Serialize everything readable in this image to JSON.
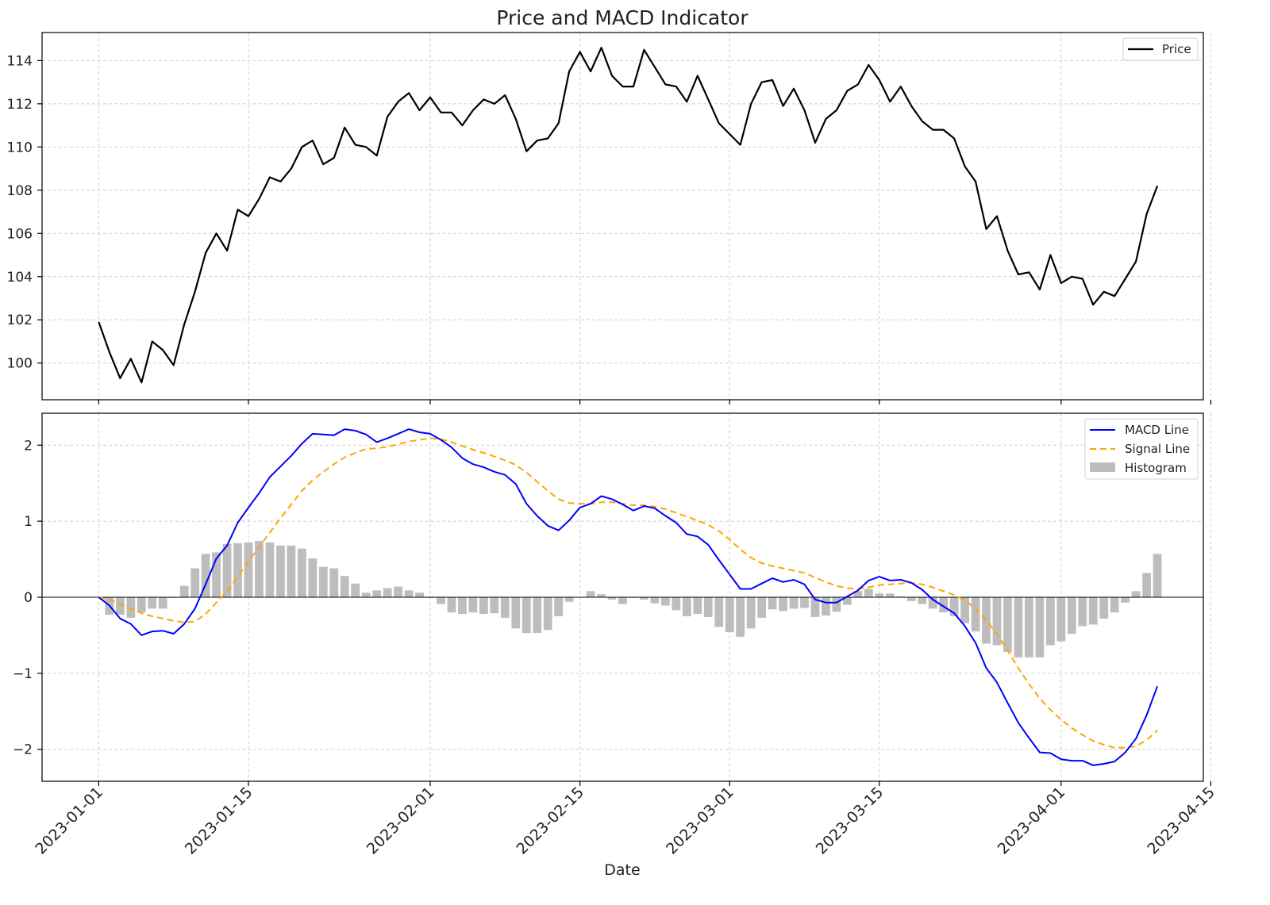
{
  "chart_data": {
    "title": "Price and MACD Indicator",
    "xlabel": "Date",
    "x_ticks": [
      "2023-01-01",
      "2023-01-15",
      "2023-02-01",
      "2023-02-15",
      "2023-03-01",
      "2023-03-15",
      "2023-04-01",
      "2023-04-15"
    ],
    "x_start_date": "2023-01-01",
    "x_range_days": [
      -5.3,
      103.3
    ],
    "price_panel": {
      "type": "line",
      "ylim": [
        98.3,
        115.3
      ],
      "y_ticks": [
        100,
        102,
        104,
        106,
        108,
        110,
        112,
        114
      ],
      "legend": [
        "Price"
      ],
      "series": [
        {
          "name": "Price",
          "color": "#000000",
          "values": [
            101.9,
            100.5,
            99.3,
            100.2,
            99.1,
            101.0,
            100.6,
            99.9,
            101.8,
            103.3,
            105.1,
            106.0,
            105.2,
            107.1,
            106.8,
            107.6,
            108.6,
            108.4,
            109.0,
            110.0,
            110.3,
            109.2,
            109.5,
            110.9,
            110.1,
            110.0,
            109.6,
            111.4,
            112.1,
            112.5,
            111.7,
            112.3,
            111.6,
            111.6,
            111.0,
            111.7,
            112.2,
            112.0,
            112.4,
            111.3,
            109.8,
            110.3,
            110.4,
            111.1,
            113.5,
            114.4,
            113.5,
            114.6,
            113.3,
            112.8,
            112.8,
            114.5,
            113.7,
            112.9,
            112.8,
            112.1,
            113.3,
            112.2,
            111.1,
            110.6,
            110.1,
            112.0,
            113.0,
            113.1,
            111.9,
            112.7,
            111.7,
            110.2,
            111.3,
            111.7,
            112.6,
            112.9,
            113.8,
            113.1,
            112.1,
            112.8,
            111.9,
            111.2,
            110.8,
            110.8,
            110.4,
            109.1,
            108.4,
            106.2,
            106.8,
            105.2,
            104.1,
            104.2,
            103.4,
            105.0,
            103.7,
            104.0,
            103.9,
            102.7,
            103.3,
            103.1,
            103.9,
            104.7,
            106.9,
            108.2
          ]
        }
      ]
    },
    "macd_panel": {
      "type": "line+bar",
      "ylim": [
        -2.42,
        2.42
      ],
      "y_ticks": [
        -2,
        -1,
        0,
        1,
        2
      ],
      "y_tick_labels": [
        "−2",
        "−1",
        "0",
        "1",
        "2"
      ],
      "legend": [
        "MACD Line",
        "Signal Line",
        "Histogram"
      ],
      "series": [
        {
          "name": "MACD Line",
          "color": "#0000ff",
          "style": "solid",
          "values": [
            0.0,
            -0.11,
            -0.28,
            -0.35,
            -0.5,
            -0.45,
            -0.44,
            -0.48,
            -0.35,
            -0.15,
            0.17,
            0.51,
            0.68,
            0.98,
            1.18,
            1.37,
            1.58,
            1.72,
            1.86,
            2.02,
            2.15,
            2.14,
            2.13,
            2.21,
            2.19,
            2.14,
            2.04,
            2.09,
            2.15,
            2.21,
            2.17,
            2.15,
            2.07,
            1.97,
            1.83,
            1.75,
            1.71,
            1.65,
            1.61,
            1.49,
            1.23,
            1.07,
            0.94,
            0.88,
            1.01,
            1.18,
            1.23,
            1.33,
            1.29,
            1.22,
            1.14,
            1.2,
            1.17,
            1.07,
            0.98,
            0.83,
            0.8,
            0.69,
            0.49,
            0.3,
            0.11,
            0.11,
            0.18,
            0.25,
            0.2,
            0.23,
            0.17,
            -0.03,
            -0.07,
            -0.07,
            0.01,
            0.09,
            0.22,
            0.27,
            0.22,
            0.23,
            0.19,
            0.1,
            -0.03,
            -0.12,
            -0.21,
            -0.38,
            -0.6,
            -0.93,
            -1.12,
            -1.39,
            -1.65,
            -1.85,
            -2.04,
            -2.05,
            -2.13,
            -2.15,
            -2.15,
            -2.21,
            -2.19,
            -2.16,
            -2.04,
            -1.86,
            -1.55,
            -1.17
          ]
        },
        {
          "name": "Signal Line",
          "color": "#ffa500",
          "style": "dashed",
          "values": [
            0.0,
            -0.03,
            -0.09,
            -0.15,
            -0.21,
            -0.25,
            -0.28,
            -0.31,
            -0.33,
            -0.32,
            -0.22,
            -0.07,
            0.08,
            0.27,
            0.47,
            0.66,
            0.85,
            1.04,
            1.22,
            1.4,
            1.54,
            1.65,
            1.75,
            1.84,
            1.9,
            1.95,
            1.96,
            1.98,
            2.01,
            2.05,
            2.07,
            2.09,
            2.08,
            2.04,
            1.99,
            1.94,
            1.9,
            1.85,
            1.8,
            1.74,
            1.64,
            1.52,
            1.4,
            1.29,
            1.24,
            1.23,
            1.23,
            1.25,
            1.25,
            1.23,
            1.21,
            1.21,
            1.19,
            1.16,
            1.11,
            1.06,
            1.01,
            0.95,
            0.87,
            0.76,
            0.63,
            0.52,
            0.45,
            0.41,
            0.38,
            0.35,
            0.32,
            0.26,
            0.2,
            0.15,
            0.12,
            0.11,
            0.13,
            0.16,
            0.17,
            0.18,
            0.19,
            0.17,
            0.13,
            0.08,
            0.03,
            -0.04,
            -0.15,
            -0.3,
            -0.48,
            -0.7,
            -0.93,
            -1.14,
            -1.33,
            -1.48,
            -1.61,
            -1.72,
            -1.81,
            -1.89,
            -1.94,
            -1.98,
            -1.98,
            -1.96,
            -1.88,
            -1.75
          ]
        },
        {
          "name": "Histogram",
          "color": "#bdbdbd",
          "style": "bar",
          "values": [
            0.0,
            -0.23,
            -0.23,
            -0.27,
            -0.2,
            -0.15,
            -0.15,
            -0.01,
            0.15,
            0.38,
            0.57,
            0.59,
            0.7,
            0.71,
            0.72,
            0.74,
            0.72,
            0.68,
            0.68,
            0.64,
            0.51,
            0.4,
            0.38,
            0.28,
            0.18,
            0.06,
            0.09,
            0.12,
            0.14,
            0.09,
            0.06,
            -0.01,
            -0.09,
            -0.2,
            -0.22,
            -0.2,
            -0.22,
            -0.21,
            -0.27,
            -0.41,
            -0.47,
            -0.47,
            -0.43,
            -0.25,
            -0.06,
            0.0,
            0.08,
            0.04,
            -0.03,
            -0.09,
            -0.01,
            -0.03,
            -0.08,
            -0.11,
            -0.17,
            -0.25,
            -0.22,
            -0.26,
            -0.39,
            -0.46,
            -0.52,
            -0.41,
            -0.27,
            -0.16,
            -0.18,
            -0.15,
            -0.14,
            -0.26,
            -0.24,
            -0.19,
            -0.1,
            0.08,
            0.11,
            0.05,
            0.05,
            0.01,
            -0.05,
            -0.09,
            -0.15,
            -0.2,
            -0.25,
            -0.34,
            -0.45,
            -0.61,
            -0.63,
            -0.72,
            -0.79,
            -0.79,
            -0.79,
            -0.63,
            -0.58,
            -0.48,
            -0.38,
            -0.36,
            -0.28,
            -0.2,
            -0.07,
            0.08,
            0.32,
            0.57
          ]
        }
      ]
    }
  }
}
